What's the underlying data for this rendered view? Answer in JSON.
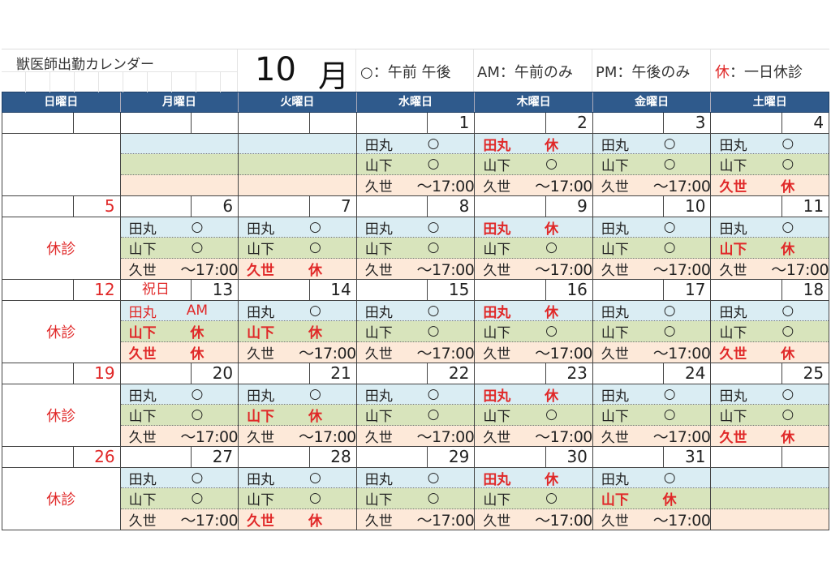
{
  "title": "獣医師出勤カレンダー",
  "month_number": "10",
  "month_char": "月",
  "legend": [
    {
      "symbol": "○",
      "text": "：午前 午後"
    },
    {
      "symbol": "AM",
      "text": "：午前のみ"
    },
    {
      "symbol": "PM",
      "text": "：午後のみ"
    },
    {
      "symbol": "休",
      "text": "：一日休診"
    }
  ],
  "weekdays": [
    "日曜日",
    "月曜日",
    "火曜日",
    "水曜日",
    "木曜日",
    "金曜日",
    "土曜日"
  ],
  "colors": {
    "header": "#2f5a8c",
    "row_tamaru": "#daedf3",
    "row_yamashita": "#d8e4bc",
    "row_kuze": "#fde9d9",
    "off": "#e02828"
  },
  "weeks": [
    {
      "days": [
        {
          "date": "",
          "staff": null
        },
        {
          "date": "",
          "staff": "empty"
        },
        {
          "date": "",
          "staff": "empty"
        },
        {
          "date": "1",
          "staff": [
            {
              "name": "田丸",
              "mark": "○"
            },
            {
              "name": "山下",
              "mark": "○"
            },
            {
              "name": "久世",
              "mark": "～17:00"
            }
          ]
        },
        {
          "date": "2",
          "staff": [
            {
              "name": "田丸",
              "mark": "休"
            },
            {
              "name": "山下",
              "mark": "○"
            },
            {
              "name": "久世",
              "mark": "～17:00"
            }
          ]
        },
        {
          "date": "3",
          "staff": [
            {
              "name": "田丸",
              "mark": "○"
            },
            {
              "name": "山下",
              "mark": "○"
            },
            {
              "name": "久世",
              "mark": "～17:00"
            }
          ]
        },
        {
          "date": "4",
          "staff": [
            {
              "name": "田丸",
              "mark": "○"
            },
            {
              "name": "山下",
              "mark": "○"
            },
            {
              "name": "久世",
              "mark": "休"
            }
          ]
        }
      ]
    },
    {
      "days": [
        {
          "date": "5",
          "closed": "休診"
        },
        {
          "date": "6",
          "staff": [
            {
              "name": "田丸",
              "mark": "○"
            },
            {
              "name": "山下",
              "mark": "○"
            },
            {
              "name": "久世",
              "mark": "～17:00"
            }
          ]
        },
        {
          "date": "7",
          "staff": [
            {
              "name": "田丸",
              "mark": "○"
            },
            {
              "name": "山下",
              "mark": "○"
            },
            {
              "name": "久世",
              "mark": "休"
            }
          ]
        },
        {
          "date": "8",
          "staff": [
            {
              "name": "田丸",
              "mark": "○"
            },
            {
              "name": "山下",
              "mark": "○"
            },
            {
              "name": "久世",
              "mark": "～17:00"
            }
          ]
        },
        {
          "date": "9",
          "staff": [
            {
              "name": "田丸",
              "mark": "休"
            },
            {
              "name": "山下",
              "mark": "○"
            },
            {
              "name": "久世",
              "mark": "～17:00"
            }
          ]
        },
        {
          "date": "10",
          "staff": [
            {
              "name": "田丸",
              "mark": "○"
            },
            {
              "name": "山下",
              "mark": "○"
            },
            {
              "name": "久世",
              "mark": "～17:00"
            }
          ]
        },
        {
          "date": "11",
          "staff": [
            {
              "name": "田丸",
              "mark": "○"
            },
            {
              "name": "山下",
              "mark": "休"
            },
            {
              "name": "久世",
              "mark": "～17:00"
            }
          ]
        }
      ]
    },
    {
      "days": [
        {
          "date": "12",
          "closed": "休診"
        },
        {
          "date": "13",
          "holiday": "祝日",
          "staff": [
            {
              "name": "田丸",
              "mark": "AM"
            },
            {
              "name": "山下",
              "mark": "休"
            },
            {
              "name": "久世",
              "mark": "休"
            }
          ]
        },
        {
          "date": "14",
          "staff": [
            {
              "name": "田丸",
              "mark": "○"
            },
            {
              "name": "山下",
              "mark": "休"
            },
            {
              "name": "久世",
              "mark": "～17:00"
            }
          ]
        },
        {
          "date": "15",
          "staff": [
            {
              "name": "田丸",
              "mark": "○"
            },
            {
              "name": "山下",
              "mark": "○"
            },
            {
              "name": "久世",
              "mark": "～17:00"
            }
          ]
        },
        {
          "date": "16",
          "staff": [
            {
              "name": "田丸",
              "mark": "休"
            },
            {
              "name": "山下",
              "mark": "○"
            },
            {
              "name": "久世",
              "mark": "～17:00"
            }
          ]
        },
        {
          "date": "17",
          "staff": [
            {
              "name": "田丸",
              "mark": "○"
            },
            {
              "name": "山下",
              "mark": "○"
            },
            {
              "name": "久世",
              "mark": "～17:00"
            }
          ]
        },
        {
          "date": "18",
          "staff": [
            {
              "name": "田丸",
              "mark": "○"
            },
            {
              "name": "山下",
              "mark": "○"
            },
            {
              "name": "久世",
              "mark": "休"
            }
          ]
        }
      ]
    },
    {
      "days": [
        {
          "date": "19",
          "closed": "休診"
        },
        {
          "date": "20",
          "staff": [
            {
              "name": "田丸",
              "mark": "○"
            },
            {
              "name": "山下",
              "mark": "○"
            },
            {
              "name": "久世",
              "mark": "～17:00"
            }
          ]
        },
        {
          "date": "21",
          "staff": [
            {
              "name": "田丸",
              "mark": "○"
            },
            {
              "name": "山下",
              "mark": "休"
            },
            {
              "name": "久世",
              "mark": "～17:00"
            }
          ]
        },
        {
          "date": "22",
          "staff": [
            {
              "name": "田丸",
              "mark": "○"
            },
            {
              "name": "山下",
              "mark": "○"
            },
            {
              "name": "久世",
              "mark": "～17:00"
            }
          ]
        },
        {
          "date": "23",
          "staff": [
            {
              "name": "田丸",
              "mark": "休"
            },
            {
              "name": "山下",
              "mark": "○"
            },
            {
              "name": "久世",
              "mark": "～17:00"
            }
          ]
        },
        {
          "date": "24",
          "staff": [
            {
              "name": "田丸",
              "mark": "○"
            },
            {
              "name": "山下",
              "mark": "○"
            },
            {
              "name": "久世",
              "mark": "～17:00"
            }
          ]
        },
        {
          "date": "25",
          "staff": [
            {
              "name": "田丸",
              "mark": "○"
            },
            {
              "name": "山下",
              "mark": "○"
            },
            {
              "name": "久世",
              "mark": "休"
            }
          ]
        }
      ]
    },
    {
      "days": [
        {
          "date": "26",
          "closed": "休診"
        },
        {
          "date": "27",
          "staff": [
            {
              "name": "田丸",
              "mark": "○"
            },
            {
              "name": "山下",
              "mark": "○"
            },
            {
              "name": "久世",
              "mark": "～17:00"
            }
          ]
        },
        {
          "date": "28",
          "staff": [
            {
              "name": "田丸",
              "mark": "○"
            },
            {
              "name": "山下",
              "mark": "○"
            },
            {
              "name": "久世",
              "mark": "休"
            }
          ]
        },
        {
          "date": "29",
          "staff": [
            {
              "name": "田丸",
              "mark": "○"
            },
            {
              "name": "山下",
              "mark": "○"
            },
            {
              "name": "久世",
              "mark": "～17:00"
            }
          ]
        },
        {
          "date": "30",
          "staff": [
            {
              "name": "田丸",
              "mark": "休"
            },
            {
              "name": "山下",
              "mark": "○"
            },
            {
              "name": "久世",
              "mark": "～17:00"
            }
          ]
        },
        {
          "date": "31",
          "staff": [
            {
              "name": "田丸",
              "mark": "○"
            },
            {
              "name": "山下",
              "mark": "休"
            },
            {
              "name": "久世",
              "mark": "～17:00"
            }
          ]
        },
        {
          "date": "",
          "staff": "empty"
        }
      ]
    }
  ]
}
